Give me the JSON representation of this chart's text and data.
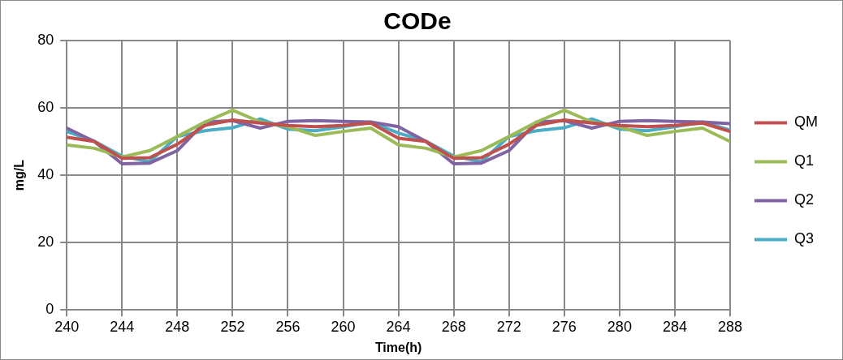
{
  "chart_data": {
    "type": "line",
    "title": "CODe",
    "xlabel": "Time(h)",
    "ylabel": "mg/L",
    "x": [
      240,
      242,
      244,
      246,
      248,
      250,
      252,
      254,
      256,
      258,
      260,
      262,
      264,
      266,
      268,
      270,
      272,
      274,
      276,
      278,
      280,
      282,
      284,
      286,
      288
    ],
    "xlim": [
      240,
      288
    ],
    "xticks": [
      240,
      244,
      248,
      252,
      256,
      260,
      264,
      268,
      272,
      276,
      280,
      284,
      288
    ],
    "ylim": [
      0,
      80
    ],
    "yticks": [
      0,
      20,
      40,
      60,
      80
    ],
    "grid": true,
    "legend": "right",
    "marker": "none",
    "line_style": "solid",
    "series": [
      {
        "name": "QM",
        "color": "#c0504d",
        "values": [
          51.3,
          50,
          45,
          45.2,
          49.2,
          54.8,
          56.4,
          55.5,
          54.8,
          54.4,
          54.8,
          55.5,
          51,
          50,
          45,
          45.2,
          49.2,
          54.8,
          56.4,
          55.5,
          54.8,
          54.4,
          54.8,
          55.5,
          53
        ]
      },
      {
        "name": "Q1",
        "color": "#9bbb59",
        "values": [
          49,
          48,
          45.4,
          47.3,
          51.5,
          55.8,
          59.3,
          55.8,
          54.4,
          51.8,
          53,
          54,
          49,
          48,
          45.4,
          47.3,
          51.5,
          55.8,
          59.3,
          55.8,
          54.4,
          51.8,
          53,
          54,
          50
        ]
      },
      {
        "name": "Q2",
        "color": "#8064a2",
        "values": [
          54,
          50,
          43.4,
          43.6,
          47.3,
          55.8,
          56.2,
          54,
          56,
          56.2,
          56,
          55.8,
          54.4,
          50,
          43.4,
          43.6,
          47.3,
          55.8,
          56.2,
          54,
          56,
          56.2,
          56,
          55.8,
          55.3
        ]
      },
      {
        "name": "Q3",
        "color": "#4bacc6",
        "values": [
          53,
          50.1,
          45.7,
          44,
          51.5,
          53.2,
          54.1,
          56.7,
          53.7,
          53.2,
          54.4,
          55.8,
          52.5,
          50.1,
          45.7,
          44,
          51.5,
          53.2,
          54.1,
          56.7,
          53.7,
          53.2,
          54.4,
          55.8,
          53.4
        ]
      }
    ]
  }
}
